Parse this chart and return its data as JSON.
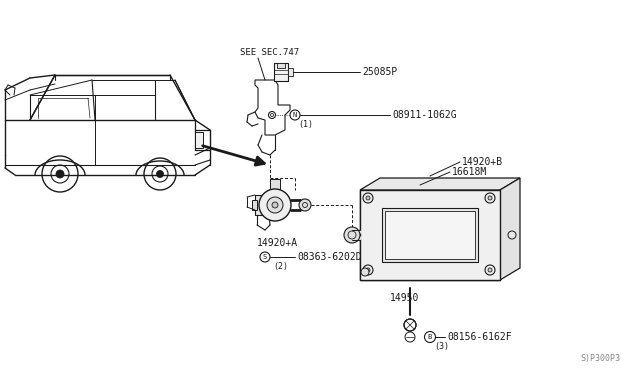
{
  "bg_color": "#ffffff",
  "line_color": "#1a1a1a",
  "fig_width": 6.4,
  "fig_height": 3.72,
  "dpi": 100,
  "watermark": "S)P300P3",
  "labels": {
    "see_sec": "SEE SEC.747",
    "p1": "25085P",
    "p2": "08911-1062G",
    "p2n": "(1)",
    "p3": "14920+B",
    "p4": "16618M",
    "p5": "14920+A",
    "p6": "08363-6202D",
    "p6n": "(2)",
    "p7": "14950",
    "p8": "08156-6162F",
    "p8n": "(3)"
  },
  "car_scale": 1.0
}
